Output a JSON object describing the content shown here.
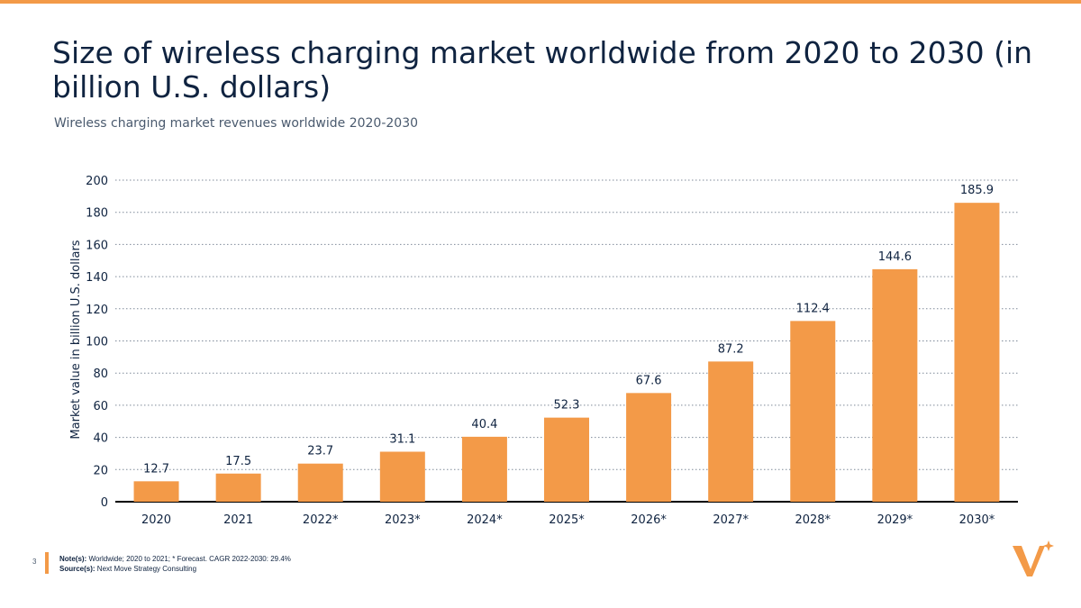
{
  "page": {
    "title": "Size of wireless charging market worldwide from 2020 to 2030 (in billion U.S. dollars)",
    "subtitle": "Wireless charging market revenues worldwide 2020-2030",
    "page_number": "3"
  },
  "footer": {
    "note_label": "Note(s):",
    "note_text": "Worldwide; 2020 to 2021; * Forecast. CAGR 2022-2030: 29.4%",
    "source_label": "Source(s):",
    "source_text": "Next Move Strategy Consulting"
  },
  "colors": {
    "accent": "#f39a48",
    "text": "#0f2340",
    "grid": "#7f8a99"
  },
  "chart_data": {
    "type": "bar",
    "categories": [
      "2020",
      "2021",
      "2022*",
      "2023*",
      "2024*",
      "2025*",
      "2026*",
      "2027*",
      "2028*",
      "2029*",
      "2030*"
    ],
    "values": [
      12.7,
      17.5,
      23.7,
      31.1,
      40.4,
      52.3,
      67.6,
      87.2,
      112.4,
      144.6,
      185.9
    ],
    "data_labels": [
      "12.7",
      "17.5",
      "23.7",
      "31.1",
      "40.4",
      "52.3",
      "67.6",
      "87.2",
      "112.4",
      "144.6",
      "185.9"
    ],
    "ylabel": "Market value in billion U.S. dollars",
    "ylim": [
      0,
      200
    ],
    "yticks": [
      "0",
      "20",
      "40",
      "60",
      "80",
      "100",
      "120",
      "140",
      "160",
      "180",
      "200"
    ],
    "grid": true,
    "legend": "none"
  }
}
